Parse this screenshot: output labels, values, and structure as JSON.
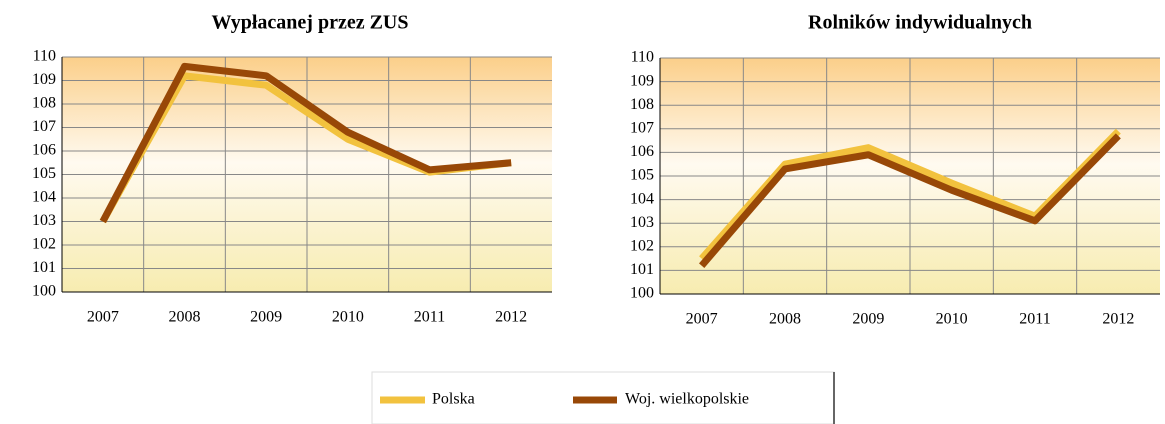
{
  "chart_data": [
    {
      "type": "line",
      "title": "Wypłacanej przez ZUS",
      "categories": [
        "2007",
        "2008",
        "2009",
        "2010",
        "2011",
        "2012"
      ],
      "series": [
        {
          "name": "Polska",
          "color": "#f2c23e",
          "values": [
            103.0,
            109.2,
            108.8,
            106.5,
            105.1,
            105.5
          ]
        },
        {
          "name": "Woj. wielkopolskie",
          "color": "#984807",
          "values": [
            103.0,
            109.6,
            109.2,
            106.8,
            105.2,
            105.5
          ]
        }
      ],
      "ylim": [
        100,
        110
      ],
      "yticks": [
        100,
        101,
        102,
        103,
        104,
        105,
        106,
        107,
        108,
        109,
        110
      ],
      "grid": true
    },
    {
      "type": "line",
      "title": "Rolników indywidualnych",
      "categories": [
        "2007",
        "2008",
        "2009",
        "2010",
        "2011",
        "2012"
      ],
      "series": [
        {
          "name": "Polska",
          "color": "#f2c23e",
          "values": [
            101.5,
            105.5,
            106.2,
            104.7,
            103.3,
            106.9
          ]
        },
        {
          "name": "Woj. wielkopolskie",
          "color": "#984807",
          "values": [
            101.2,
            105.3,
            105.9,
            104.4,
            103.1,
            106.7
          ]
        }
      ],
      "ylim": [
        100,
        110
      ],
      "yticks": [
        100,
        101,
        102,
        103,
        104,
        105,
        106,
        107,
        108,
        109,
        110
      ],
      "grid": true
    }
  ]
}
